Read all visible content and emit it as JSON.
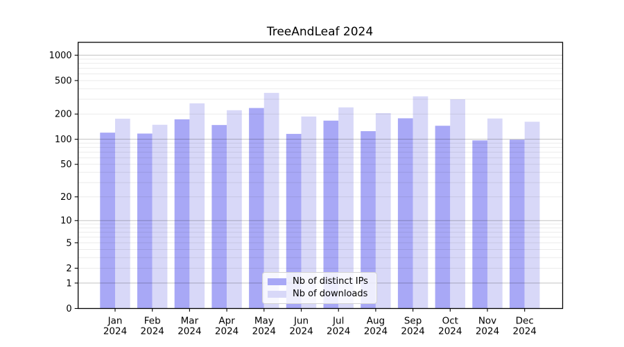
{
  "title": "TreeAndLeaf 2024",
  "chart_data": {
    "type": "bar",
    "title": "TreeAndLeaf 2024",
    "xlabel": "",
    "ylabel": "",
    "y_scale": "log1p",
    "ylim": [
      0,
      1420
    ],
    "y_ticks": [
      1000,
      500,
      200,
      100,
      50,
      20,
      10,
      5,
      2,
      1,
      0
    ],
    "grid": true,
    "legend_position": "lower center",
    "categories": [
      {
        "month": "Jan",
        "year": "2024"
      },
      {
        "month": "Feb",
        "year": "2024"
      },
      {
        "month": "Mar",
        "year": "2024"
      },
      {
        "month": "Apr",
        "year": "2024"
      },
      {
        "month": "May",
        "year": "2024"
      },
      {
        "month": "Jun",
        "year": "2024"
      },
      {
        "month": "Jul",
        "year": "2024"
      },
      {
        "month": "Aug",
        "year": "2024"
      },
      {
        "month": "Sep",
        "year": "2024"
      },
      {
        "month": "Oct",
        "year": "2024"
      },
      {
        "month": "Nov",
        "year": "2024"
      },
      {
        "month": "Dec",
        "year": "2024"
      }
    ],
    "series": [
      {
        "name": "Nb of distinct IPs",
        "color": "#a8a8f6",
        "values": [
          120,
          117,
          173,
          148,
          236,
          116,
          167,
          125,
          178,
          145,
          97,
          99
        ]
      },
      {
        "name": "Nb of downloads",
        "color": "#d8d8f8",
        "values": [
          176,
          149,
          268,
          222,
          357,
          187,
          240,
          205,
          325,
          300,
          177,
          162
        ]
      }
    ]
  }
}
